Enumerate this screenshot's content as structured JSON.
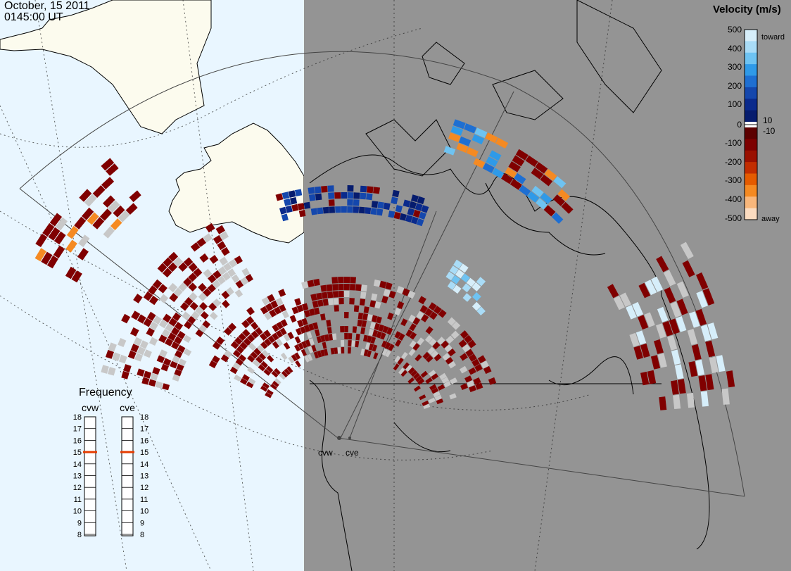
{
  "header": {
    "date": "October, 15 2011",
    "time": "0145:00 UT"
  },
  "velocity_legend": {
    "title": "Velocity (m/s)",
    "toward_label": "toward",
    "away_label": "away",
    "ticks": [
      "500",
      "400",
      "300",
      "200",
      "100",
      "10",
      "0",
      "-10",
      "-100",
      "-200",
      "-300",
      "-400",
      "-500"
    ],
    "colors": {
      "toward": [
        "#d6eefa",
        "#a9dcf7",
        "#6ec3f2",
        "#2f9ae8",
        "#1e6fd2",
        "#1447ad",
        "#0a2a8c",
        "#061c6e"
      ],
      "away": [
        "#5c0000",
        "#7d0000",
        "#9a1000",
        "#c22d00",
        "#e55b00",
        "#f58a22",
        "#f9b77b",
        "#fcdcc0"
      ]
    }
  },
  "frequency": {
    "title": "Frequency",
    "radars": [
      "cvw",
      "cve"
    ],
    "scale_values": [
      "18",
      "17",
      "16",
      "15",
      "14",
      "13",
      "12",
      "11",
      "10",
      "9",
      "8"
    ],
    "selected_value": "15"
  },
  "radar_sites": {
    "cvw_label": "cvw",
    "cve_label": "cve"
  },
  "colors": {
    "ocean": "#e9f6ff",
    "land_day": "#fcfbee",
    "night_shade": "#949494",
    "ground_scatter": "#c8c8c8",
    "high_negative": "#800000",
    "coast": "#000000"
  }
}
